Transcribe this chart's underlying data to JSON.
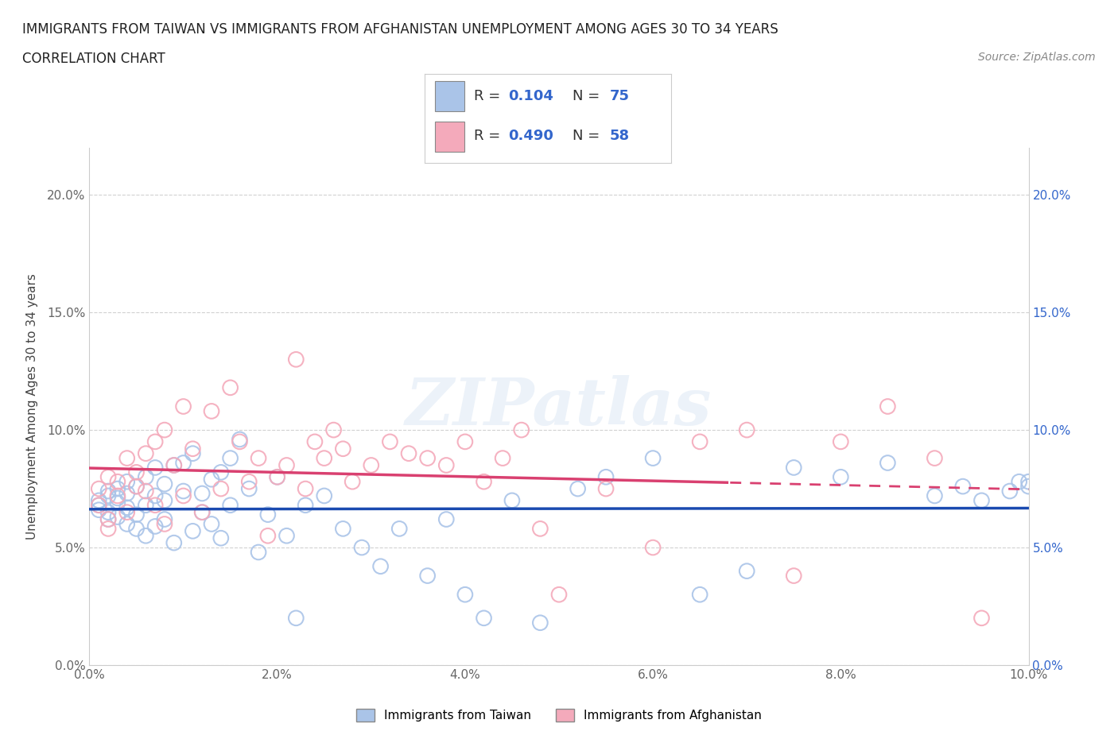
{
  "title_line1": "IMMIGRANTS FROM TAIWAN VS IMMIGRANTS FROM AFGHANISTAN UNEMPLOYMENT AMONG AGES 30 TO 34 YEARS",
  "title_line2": "CORRELATION CHART",
  "source_text": "Source: ZipAtlas.com",
  "ylabel": "Unemployment Among Ages 30 to 34 years",
  "xlim": [
    0.0,
    0.1
  ],
  "ylim": [
    0.0,
    0.22
  ],
  "xticks": [
    0.0,
    0.02,
    0.04,
    0.06,
    0.08,
    0.1
  ],
  "yticks": [
    0.0,
    0.05,
    0.1,
    0.15,
    0.2
  ],
  "xtick_labels": [
    "0.0%",
    "2.0%",
    "4.0%",
    "6.0%",
    "8.0%",
    "10.0%"
  ],
  "ytick_labels": [
    "0.0%",
    "5.0%",
    "10.0%",
    "15.0%",
    "20.0%"
  ],
  "taiwan_color": "#aac4e8",
  "afghanistan_color": "#f4aabb",
  "taiwan_line_color": "#1a4ab0",
  "afghanistan_line_color": "#d94070",
  "taiwan_R": 0.104,
  "taiwan_N": 75,
  "afghanistan_R": 0.49,
  "afghanistan_N": 58,
  "taiwan_scatter_x": [
    0.001,
    0.001,
    0.001,
    0.002,
    0.002,
    0.002,
    0.002,
    0.003,
    0.003,
    0.003,
    0.003,
    0.004,
    0.004,
    0.004,
    0.004,
    0.005,
    0.005,
    0.005,
    0.006,
    0.006,
    0.006,
    0.007,
    0.007,
    0.007,
    0.008,
    0.008,
    0.008,
    0.009,
    0.009,
    0.01,
    0.01,
    0.011,
    0.011,
    0.012,
    0.012,
    0.013,
    0.013,
    0.014,
    0.014,
    0.015,
    0.015,
    0.016,
    0.017,
    0.018,
    0.019,
    0.02,
    0.021,
    0.022,
    0.023,
    0.025,
    0.027,
    0.029,
    0.031,
    0.033,
    0.036,
    0.038,
    0.04,
    0.042,
    0.045,
    0.048,
    0.052,
    0.055,
    0.06,
    0.065,
    0.07,
    0.075,
    0.08,
    0.085,
    0.09,
    0.093,
    0.095,
    0.098,
    0.099,
    0.1,
    0.1
  ],
  "taiwan_scatter_y": [
    0.07,
    0.068,
    0.066,
    0.072,
    0.065,
    0.074,
    0.062,
    0.069,
    0.075,
    0.063,
    0.071,
    0.067,
    0.073,
    0.06,
    0.078,
    0.076,
    0.058,
    0.064,
    0.08,
    0.055,
    0.068,
    0.084,
    0.059,
    0.072,
    0.077,
    0.062,
    0.07,
    0.085,
    0.052,
    0.086,
    0.074,
    0.09,
    0.057,
    0.073,
    0.065,
    0.079,
    0.06,
    0.082,
    0.054,
    0.088,
    0.068,
    0.096,
    0.075,
    0.048,
    0.064,
    0.08,
    0.055,
    0.02,
    0.068,
    0.072,
    0.058,
    0.05,
    0.042,
    0.058,
    0.038,
    0.062,
    0.03,
    0.02,
    0.07,
    0.018,
    0.075,
    0.08,
    0.088,
    0.03,
    0.04,
    0.084,
    0.08,
    0.086,
    0.072,
    0.076,
    0.07,
    0.074,
    0.078,
    0.078,
    0.076
  ],
  "afghanistan_scatter_x": [
    0.001,
    0.001,
    0.002,
    0.002,
    0.002,
    0.003,
    0.003,
    0.004,
    0.004,
    0.005,
    0.005,
    0.006,
    0.006,
    0.007,
    0.007,
    0.008,
    0.008,
    0.009,
    0.01,
    0.01,
    0.011,
    0.012,
    0.013,
    0.014,
    0.015,
    0.016,
    0.017,
    0.018,
    0.019,
    0.02,
    0.021,
    0.022,
    0.023,
    0.024,
    0.025,
    0.026,
    0.027,
    0.028,
    0.03,
    0.032,
    0.034,
    0.036,
    0.038,
    0.04,
    0.042,
    0.044,
    0.046,
    0.048,
    0.05,
    0.055,
    0.06,
    0.065,
    0.07,
    0.075,
    0.08,
    0.085,
    0.09,
    0.095
  ],
  "afghanistan_scatter_y": [
    0.068,
    0.075,
    0.062,
    0.08,
    0.058,
    0.072,
    0.078,
    0.065,
    0.088,
    0.076,
    0.082,
    0.074,
    0.09,
    0.068,
    0.095,
    0.06,
    0.1,
    0.085,
    0.072,
    0.11,
    0.092,
    0.065,
    0.108,
    0.075,
    0.118,
    0.095,
    0.078,
    0.088,
    0.055,
    0.08,
    0.085,
    0.13,
    0.075,
    0.095,
    0.088,
    0.1,
    0.092,
    0.078,
    0.085,
    0.095,
    0.09,
    0.088,
    0.085,
    0.095,
    0.078,
    0.088,
    0.1,
    0.058,
    0.03,
    0.075,
    0.05,
    0.095,
    0.1,
    0.038,
    0.095,
    0.11,
    0.088,
    0.02
  ],
  "watermark_text": "ZIPatlas",
  "background_color": "#ffffff",
  "grid_color": "#cccccc",
  "left_ytick_color": "#666666",
  "right_ytick_color": "#3366cc",
  "xtick_color": "#666666"
}
